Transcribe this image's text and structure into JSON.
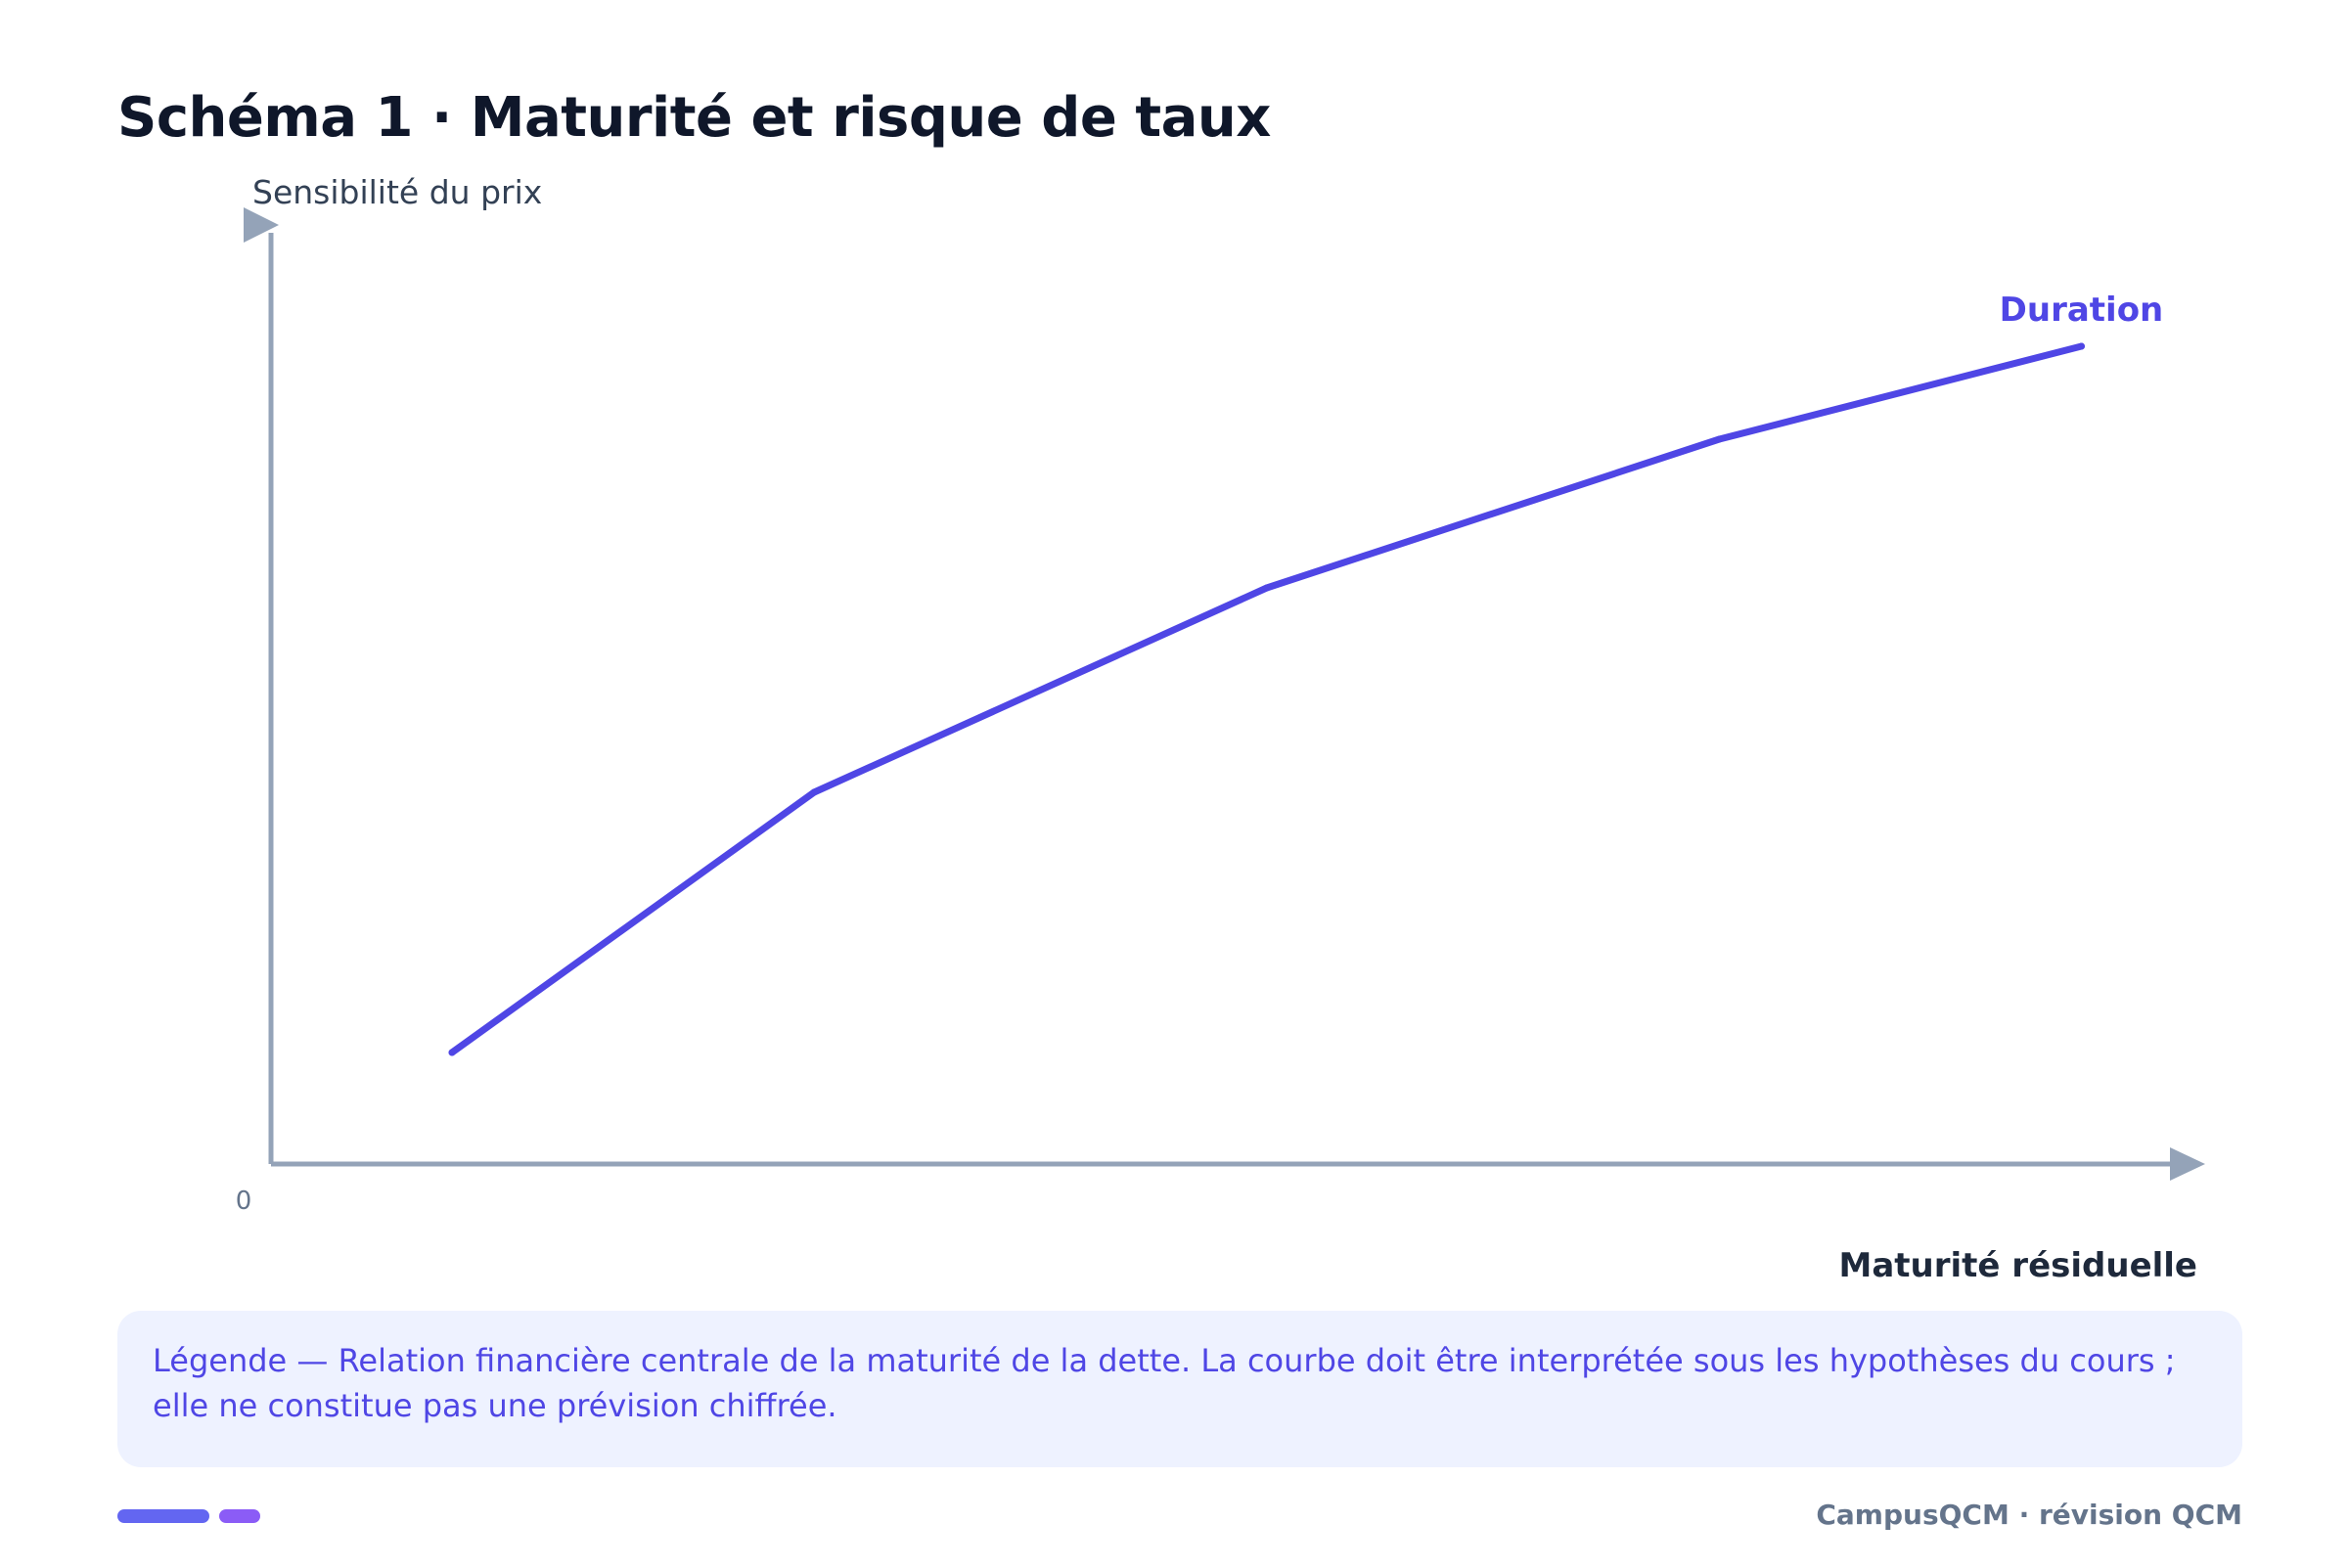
{
  "page": {
    "title": "Schéma 1 · Maturité et risque de taux"
  },
  "chart_data": {
    "type": "line",
    "title": "Schéma 1 · Maturité et risque de taux",
    "ylabel": "Sensibilité du prix",
    "xlabel": "Maturité résiduelle",
    "x_ticks": [
      "0"
    ],
    "series": [
      {
        "name": "Duration",
        "color": "#4f46e5",
        "x": [
          0.5,
          2.5,
          5,
          7.5,
          9.5
        ],
        "y": [
          1.2,
          4,
          6.2,
          7.8,
          8.8
        ]
      }
    ],
    "xlim": [
      -0.5,
      10
    ],
    "ylim": [
      0,
      10
    ],
    "grid": false,
    "legend": "inline label at end of line",
    "axis_color": "#94a3b8"
  },
  "legend_box": {
    "line1": "Légende — Relation financière centrale de la maturité de la dette. La courbe doit être interprétée sous les hypothèses du cours ;",
    "line2": "elle ne constitue pas une prévision chiffrée."
  },
  "footer": {
    "brand": "CampusQCM · révision QCM",
    "bar_colors": [
      "#6366f1",
      "#8b5cf6"
    ]
  }
}
